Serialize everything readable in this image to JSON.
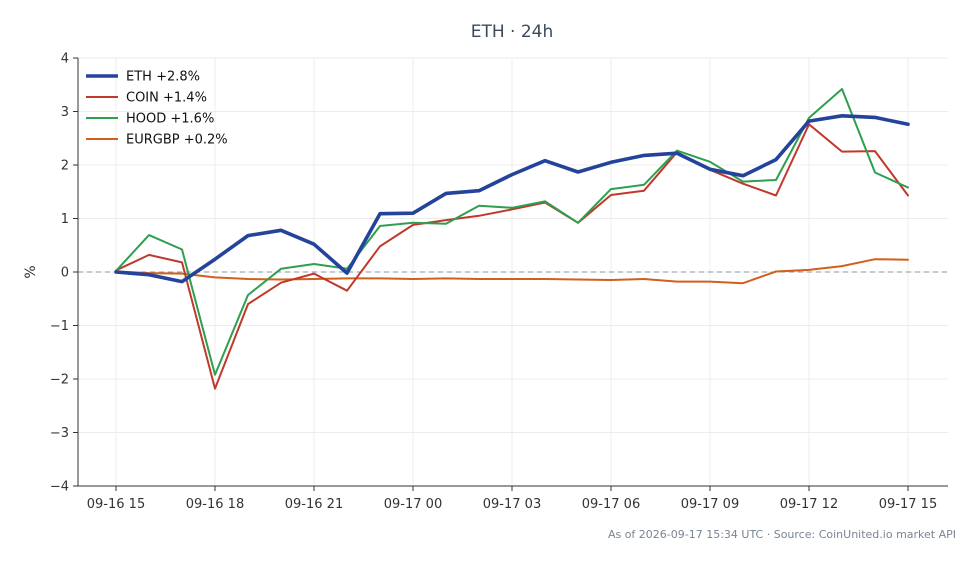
{
  "chart_data": {
    "type": "line",
    "title": "ETH · 24h",
    "xlabel": "",
    "ylabel": "%",
    "ylim": [
      -4,
      4
    ],
    "yticks": [
      -4,
      -3,
      -2,
      -1,
      0,
      1,
      2,
      3,
      4
    ],
    "ytick_labels": [
      "−4",
      "−3",
      "−2",
      "−1",
      "0",
      "1",
      "2",
      "3",
      "4"
    ],
    "grid": true,
    "legend": "top-left",
    "reference_line": 0,
    "x": [
      "09-16 15",
      "09-16 16",
      "09-16 17",
      "09-16 18",
      "09-16 19",
      "09-16 20",
      "09-16 21",
      "09-16 22",
      "09-16 23",
      "09-17 00",
      "09-17 01",
      "09-17 02",
      "09-17 03",
      "09-17 04",
      "09-17 05",
      "09-17 06",
      "09-17 07",
      "09-17 08",
      "09-17 09",
      "09-17 10",
      "09-17 11",
      "09-17 12",
      "09-17 13",
      "09-17 14",
      "09-17 15"
    ],
    "xtick_labels": [
      "09-16 15",
      "09-16 18",
      "09-16 21",
      "09-17 00",
      "09-17 03",
      "09-17 06",
      "09-17 09",
      "09-17 12",
      "09-17 15"
    ],
    "series": [
      {
        "name": "ETH +2.8%",
        "color": "#24439a",
        "values": [
          0,
          -0.05,
          -0.18,
          0.24,
          0.68,
          0.78,
          0.52,
          -0.02,
          1.09,
          1.1,
          1.47,
          1.52,
          1.82,
          2.08,
          1.87,
          2.05,
          2.18,
          2.22,
          1.92,
          1.8,
          2.1,
          2.82,
          2.92,
          2.89,
          2.76
        ]
      },
      {
        "name": "COIN +1.4%",
        "color": "#c0392b",
        "values": [
          0.03,
          0.32,
          0.18,
          -2.18,
          -0.6,
          -0.2,
          -0.03,
          -0.35,
          0.48,
          0.88,
          0.97,
          1.05,
          1.17,
          1.3,
          0.92,
          1.44,
          1.52,
          2.24,
          1.91,
          1.65,
          1.43,
          2.76,
          2.25,
          2.26,
          1.43
        ]
      },
      {
        "name": "HOOD +1.6%",
        "color": "#2e9e4f",
        "values": [
          0.02,
          0.69,
          0.42,
          -1.92,
          -0.43,
          0.06,
          0.15,
          0.06,
          0.86,
          0.92,
          0.9,
          1.24,
          1.2,
          1.32,
          0.92,
          1.55,
          1.63,
          2.27,
          2.06,
          1.69,
          1.72,
          2.88,
          3.42,
          1.86,
          1.58
        ]
      },
      {
        "name": "EURGBP +0.2%",
        "color": "#d35f1a",
        "values": [
          0.01,
          -0.02,
          -0.03,
          -0.1,
          -0.13,
          -0.14,
          -0.13,
          -0.12,
          -0.12,
          -0.13,
          -0.12,
          -0.13,
          -0.13,
          -0.13,
          -0.14,
          -0.15,
          -0.13,
          -0.18,
          -0.18,
          -0.21,
          0.01,
          0.04,
          0.11,
          0.24,
          0.23
        ]
      }
    ]
  },
  "footer": "As of 2026-09-17 15:34 UTC · Source: CoinUnited.io market API"
}
